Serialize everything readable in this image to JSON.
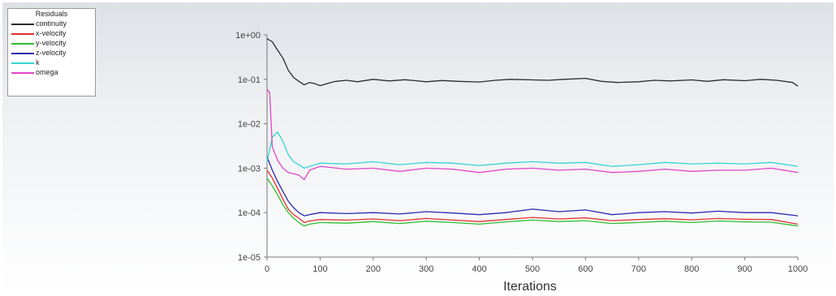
{
  "chart_data": {
    "type": "line",
    "title": "",
    "xlabel": "Iterations",
    "ylabel": "",
    "yscale": "log",
    "xlim": [
      0,
      1000
    ],
    "ylim": [
      1e-05,
      1
    ],
    "grid": false,
    "legend_placement": "top-left",
    "legend_title": "Residuals",
    "x_ticks": [
      "0",
      "100",
      "200",
      "300",
      "400",
      "500",
      "600",
      "700",
      "800",
      "900",
      "1000"
    ],
    "y_ticks": [
      "1e-05",
      "1e-04",
      "1e-03",
      "1e-02",
      "1e-01",
      "1e+00"
    ],
    "series": [
      {
        "name": "continuity",
        "color": "#2b2b2b",
        "x": [
          0,
          10,
          20,
          30,
          40,
          50,
          60,
          70,
          80,
          90,
          100,
          110,
          120,
          130,
          150,
          170,
          200,
          230,
          260,
          300,
          330,
          360,
          400,
          430,
          460,
          500,
          530,
          560,
          600,
          630,
          660,
          700,
          730,
          760,
          800,
          830,
          860,
          900,
          930,
          960,
          990,
          1000
        ],
        "y": [
          0.82,
          0.7,
          0.45,
          0.3,
          0.16,
          0.11,
          0.09,
          0.075,
          0.085,
          0.08,
          0.072,
          0.078,
          0.085,
          0.09,
          0.095,
          0.088,
          0.1,
          0.092,
          0.098,
          0.088,
          0.094,
          0.09,
          0.087,
          0.095,
          0.1,
          0.097,
          0.095,
          0.1,
          0.105,
          0.09,
          0.085,
          0.088,
          0.095,
          0.092,
          0.097,
          0.09,
          0.098,
          0.093,
          0.1,
          0.095,
          0.085,
          0.07
        ]
      },
      {
        "name": "x-velocity",
        "color": "#e03030",
        "x": [
          0,
          10,
          20,
          30,
          40,
          50,
          60,
          70,
          80,
          100,
          150,
          200,
          250,
          300,
          350,
          400,
          450,
          500,
          550,
          600,
          650,
          700,
          750,
          800,
          850,
          900,
          950,
          1000
        ],
        "y": [
          0.0009,
          0.0006,
          0.00035,
          0.0002,
          0.00012,
          9e-05,
          7.5e-05,
          6e-05,
          6.5e-05,
          7e-05,
          6.8e-05,
          7.2e-05,
          6.6e-05,
          7.4e-05,
          6.8e-05,
          6.3e-05,
          7e-05,
          7.8e-05,
          7.2e-05,
          7.6e-05,
          6.6e-05,
          7e-05,
          7.3e-05,
          6.9e-05,
          7.4e-05,
          7.1e-05,
          7e-05,
          5.5e-05
        ]
      },
      {
        "name": "y-velocity",
        "color": "#2fbf2f",
        "x": [
          0,
          10,
          20,
          30,
          40,
          50,
          60,
          70,
          80,
          100,
          150,
          200,
          250,
          300,
          350,
          400,
          450,
          500,
          550,
          600,
          650,
          700,
          750,
          800,
          850,
          900,
          950,
          1000
        ],
        "y": [
          0.0006,
          0.0004,
          0.00025,
          0.00015,
          0.0001,
          7.5e-05,
          6e-05,
          5e-05,
          5.5e-05,
          6e-05,
          5.8e-05,
          6.3e-05,
          5.7e-05,
          6.4e-05,
          6e-05,
          5.5e-05,
          6.2e-05,
          6.8e-05,
          6.3e-05,
          6.6e-05,
          5.7e-05,
          6e-05,
          6.4e-05,
          6e-05,
          6.5e-05,
          6.2e-05,
          6.1e-05,
          5e-05
        ]
      },
      {
        "name": "z-velocity",
        "color": "#2a2ab0",
        "x": [
          0,
          10,
          20,
          30,
          40,
          50,
          60,
          70,
          80,
          100,
          150,
          200,
          250,
          300,
          350,
          400,
          450,
          500,
          550,
          600,
          650,
          700,
          750,
          800,
          850,
          900,
          950,
          1000
        ],
        "y": [
          0.0018,
          0.0009,
          0.0005,
          0.0003,
          0.00018,
          0.00013,
          0.0001,
          8.5e-05,
          9e-05,
          0.0001,
          9.5e-05,
          0.0001,
          9.3e-05,
          0.000105,
          9.8e-05,
          9e-05,
          0.0001,
          0.00012,
          0.000105,
          0.000115,
          9e-05,
          0.0001,
          0.000105,
          9.8e-05,
          0.000108,
          0.0001,
          0.0001,
          8.5e-05
        ]
      },
      {
        "name": "k",
        "color": "#33d6d6",
        "x": [
          0,
          10,
          20,
          30,
          40,
          50,
          60,
          70,
          80,
          100,
          150,
          200,
          250,
          300,
          350,
          400,
          450,
          500,
          550,
          600,
          650,
          700,
          750,
          800,
          850,
          900,
          950,
          1000
        ],
        "y": [
          0.0014,
          0.005,
          0.0065,
          0.004,
          0.002,
          0.0014,
          0.0012,
          0.001,
          0.0011,
          0.0013,
          0.00125,
          0.0014,
          0.0012,
          0.00135,
          0.0013,
          0.00115,
          0.0013,
          0.0014,
          0.0013,
          0.00135,
          0.0011,
          0.0012,
          0.00135,
          0.00125,
          0.0013,
          0.00125,
          0.00135,
          0.0011
        ]
      },
      {
        "name": "omega",
        "color": "#e046c8",
        "x": [
          0,
          5,
          10,
          20,
          30,
          40,
          50,
          60,
          70,
          80,
          100,
          150,
          200,
          250,
          300,
          350,
          400,
          450,
          500,
          550,
          600,
          650,
          700,
          750,
          800,
          850,
          900,
          950,
          1000
        ],
        "y": [
          0.06,
          0.05,
          0.003,
          0.0015,
          0.001,
          0.0008,
          0.00075,
          0.0007,
          0.00055,
          0.0009,
          0.0011,
          0.00095,
          0.001,
          0.00085,
          0.001,
          0.00095,
          0.0008,
          0.00095,
          0.001,
          0.0009,
          0.00095,
          0.0008,
          0.00085,
          0.00095,
          0.00085,
          0.0009,
          0.0009,
          0.001,
          0.0008
        ]
      }
    ]
  }
}
